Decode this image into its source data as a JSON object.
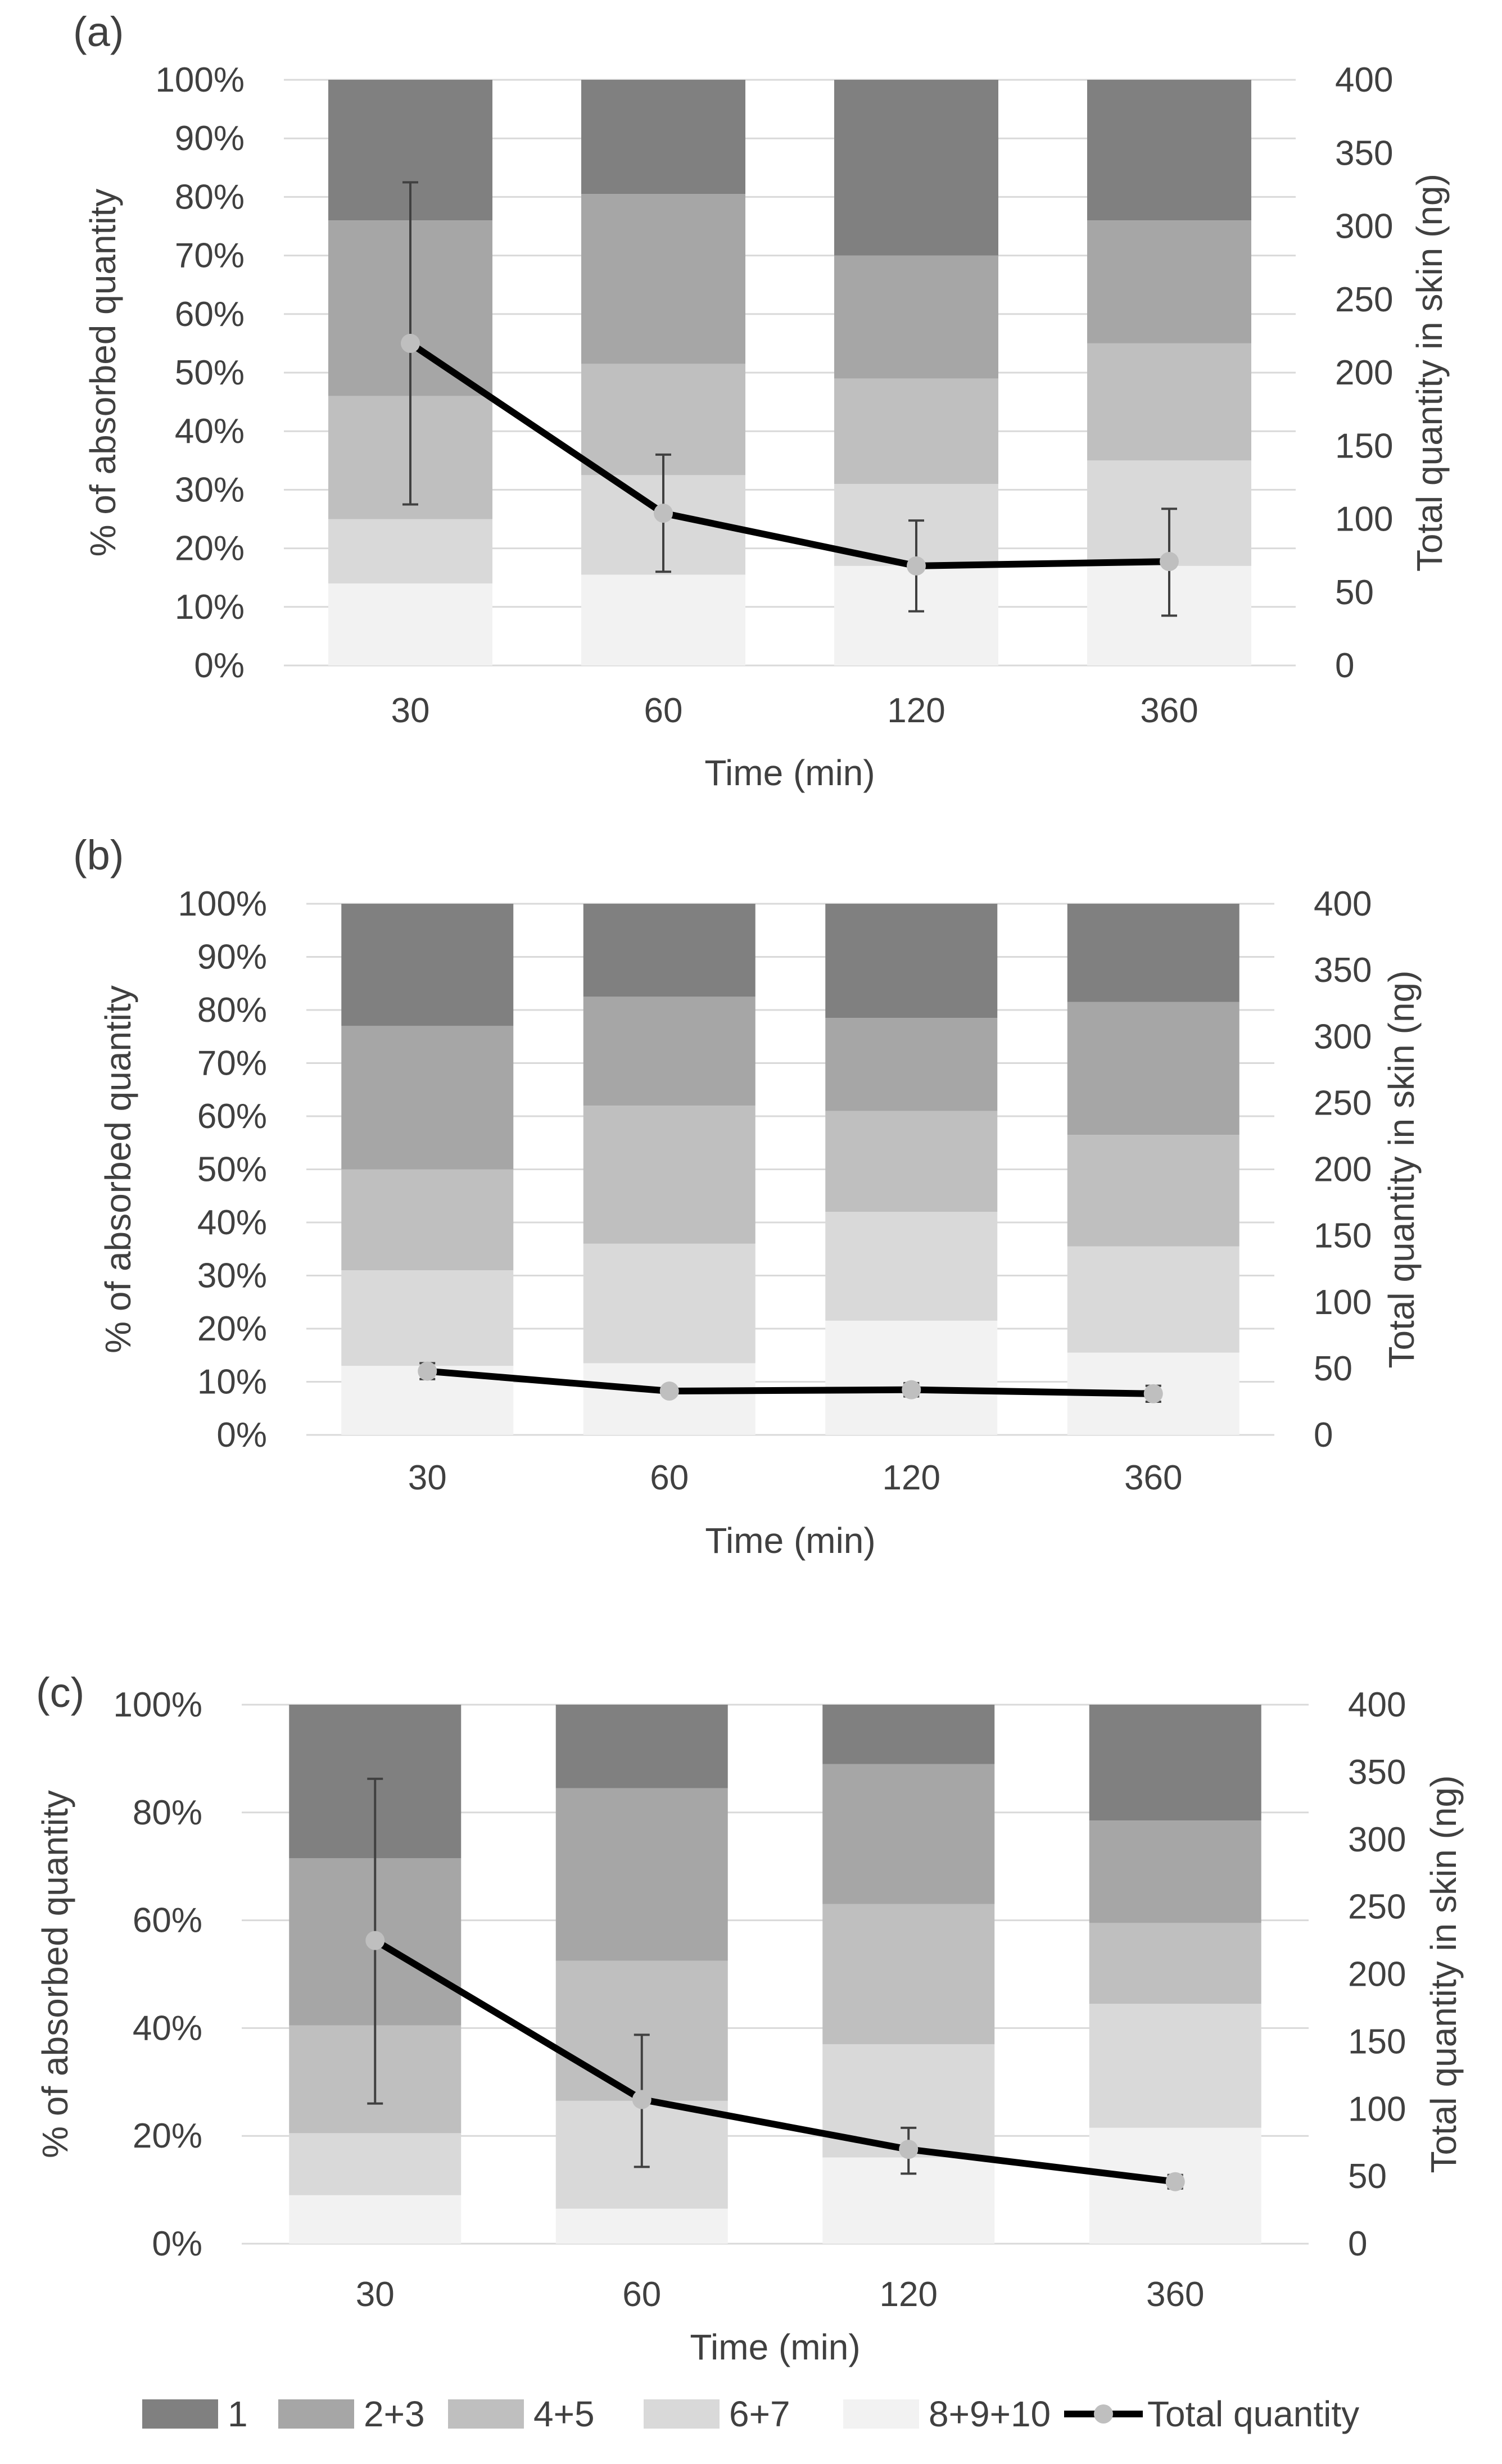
{
  "legend": {
    "items": [
      {
        "label": "1",
        "color": "#808080"
      },
      {
        "label": "2+3",
        "color": "#a6a6a6"
      },
      {
        "label": "4+5",
        "color": "#bfbfbf"
      },
      {
        "label": "6+7",
        "color": "#d9d9d9"
      },
      {
        "label": "8+9+10",
        "color": "#f2f2f2"
      }
    ],
    "line_label": "Total quantity",
    "line_color": "#000000",
    "marker_color": "#bfbfbf"
  },
  "chart_data": [
    {
      "panel": "(a)",
      "type": "stacked-bar+line",
      "categories": [
        "30",
        "60",
        "120",
        "360"
      ],
      "xlabel": "Time (min)",
      "ylabel": "% of absorbed quantity",
      "y2label": "Total quantity in skin (ng)",
      "ylim": [
        0,
        100
      ],
      "y2lim": [
        0,
        400
      ],
      "yticks": [
        "0%",
        "10%",
        "20%",
        "30%",
        "40%",
        "50%",
        "60%",
        "70%",
        "80%",
        "90%",
        "100%"
      ],
      "y2ticks": [
        "0",
        "50",
        "100",
        "150",
        "200",
        "250",
        "300",
        "350",
        "400"
      ],
      "series": [
        {
          "name": "8+9+10",
          "values": [
            14,
            15.5,
            17,
            17
          ]
        },
        {
          "name": "6+7",
          "values": [
            11,
            17,
            14,
            18
          ]
        },
        {
          "name": "4+5",
          "values": [
            21,
            19,
            18,
            20
          ]
        },
        {
          "name": "2+3",
          "values": [
            30,
            29,
            21,
            21
          ]
        },
        {
          "name": "1",
          "values": [
            24,
            19.5,
            30,
            24
          ]
        }
      ],
      "total_quantity": {
        "values": [
          220,
          104,
          68,
          71
        ],
        "err_low": [
          110,
          64,
          37,
          34
        ],
        "err_high": [
          330,
          144,
          99,
          107
        ]
      }
    },
    {
      "panel": "(b)",
      "type": "stacked-bar+line",
      "categories": [
        "30",
        "60",
        "120",
        "360"
      ],
      "xlabel": "Time (min)",
      "ylabel": "% of absorbed quantity",
      "y2label": "Total quantity in skin (ng)",
      "ylim": [
        0,
        100
      ],
      "y2lim": [
        0,
        400
      ],
      "yticks": [
        "0%",
        "10%",
        "20%",
        "30%",
        "40%",
        "50%",
        "60%",
        "70%",
        "80%",
        "90%",
        "100%"
      ],
      "y2ticks": [
        "0",
        "50",
        "100",
        "150",
        "200",
        "250",
        "300",
        "350",
        "400"
      ],
      "series": [
        {
          "name": "8+9+10",
          "values": [
            13,
            13.5,
            21.5,
            15.5
          ]
        },
        {
          "name": "6+7",
          "values": [
            18,
            22.5,
            20.5,
            20
          ]
        },
        {
          "name": "4+5",
          "values": [
            19,
            26,
            19,
            21
          ]
        },
        {
          "name": "2+3",
          "values": [
            27,
            20.5,
            17.5,
            25
          ]
        },
        {
          "name": "1",
          "values": [
            23,
            17.5,
            21.5,
            18.5
          ]
        }
      ],
      "total_quantity": {
        "values": [
          48,
          33,
          34,
          31
        ],
        "err_low": [
          42,
          31,
          29,
          25
        ],
        "err_high": [
          54,
          35,
          39,
          37
        ]
      }
    },
    {
      "panel": "(c)",
      "type": "stacked-bar+line",
      "categories": [
        "30",
        "60",
        "120",
        "360"
      ],
      "xlabel": "Time (min)",
      "ylabel": "% of absorbed quantity",
      "y2label": "Total quantity in skin (ng)",
      "ylim": [
        0,
        100
      ],
      "y2lim": [
        0,
        400
      ],
      "yticks": [
        "0%",
        "20%",
        "40%",
        "60%",
        "80%",
        "100%"
      ],
      "y2ticks": [
        "0",
        "50",
        "100",
        "150",
        "200",
        "250",
        "300",
        "350",
        "400"
      ],
      "series": [
        {
          "name": "8+9+10",
          "values": [
            9,
            6.5,
            16,
            21.5
          ]
        },
        {
          "name": "6+7",
          "values": [
            11.5,
            20,
            21,
            23
          ]
        },
        {
          "name": "4+5",
          "values": [
            20,
            26,
            26,
            15
          ]
        },
        {
          "name": "2+3",
          "values": [
            31,
            32,
            26,
            19
          ]
        },
        {
          "name": "1",
          "values": [
            28.5,
            15.5,
            11,
            21.5
          ]
        }
      ],
      "total_quantity": {
        "values": [
          225,
          107,
          70,
          46
        ],
        "err_low": [
          104,
          57,
          52,
          41
        ],
        "err_high": [
          345,
          155,
          86,
          51
        ]
      }
    }
  ]
}
